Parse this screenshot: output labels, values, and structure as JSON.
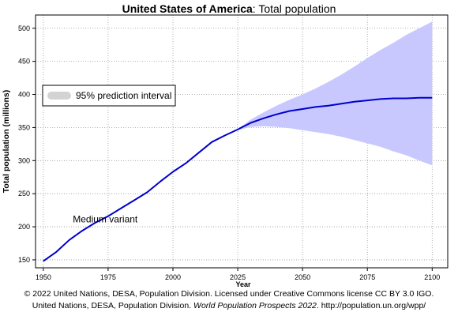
{
  "header": {
    "country": "United States of America",
    "title_suffix": ": Total population"
  },
  "footer": {
    "line1": "© 2022 United Nations, DESA, Population Division. Licensed under Creative Commons license CC BY 3.0 IGO.",
    "line2_a": "United Nations, DESA, Population Division. ",
    "line2_italic": "World Population Prospects 2022",
    "line2_b": ". http://population.un.org/wpp/"
  },
  "chart_data": {
    "type": "line",
    "xlabel": "Year",
    "ylabel": "Total population (millions)",
    "xlim": [
      1947,
      2106
    ],
    "ylim": [
      138,
      520
    ],
    "x_ticks": [
      1950,
      1975,
      2000,
      2025,
      2050,
      2075,
      2100
    ],
    "y_ticks": [
      150,
      200,
      250,
      300,
      350,
      400,
      450,
      500
    ],
    "grid": true,
    "legend": {
      "position": "left",
      "label": "95% prediction interval",
      "color": "#d3d3d3"
    },
    "annotation": {
      "text": "Medium variant",
      "x": 1962,
      "y": 197
    },
    "colors": {
      "line": "#0000cc",
      "band": "#c8c8ff",
      "grid": "#999999"
    },
    "series": [
      {
        "type": "line",
        "x": [
          1950,
          1955,
          1960,
          1965,
          1970,
          1975,
          1980,
          1985,
          1990,
          1995,
          2000,
          2005,
          2010,
          2015,
          2020,
          2025,
          2030,
          2035,
          2040,
          2045,
          2050,
          2055,
          2060,
          2065,
          2070,
          2075,
          2080,
          2085,
          2090,
          2095,
          2100
        ],
        "y": [
          148,
          162,
          180,
          194,
          206,
          216,
          228,
          240,
          252,
          268,
          283,
          296,
          312,
          328,
          338,
          347,
          357,
          364,
          370,
          375,
          378,
          381,
          383,
          386,
          389,
          391,
          393,
          394,
          394,
          395,
          395
        ]
      },
      {
        "type": "band",
        "x": [
          2025,
          2030,
          2035,
          2040,
          2045,
          2050,
          2055,
          2060,
          2065,
          2070,
          2075,
          2080,
          2085,
          2090,
          2095,
          2100
        ],
        "lower": [
          346,
          351,
          352,
          351,
          349,
          346,
          343,
          340,
          336,
          331,
          326,
          321,
          314,
          308,
          300,
          293
        ],
        "upper": [
          348,
          362,
          373,
          383,
          392,
          400,
          409,
          419,
          430,
          442,
          455,
          467,
          478,
          490,
          500,
          510
        ]
      }
    ]
  }
}
